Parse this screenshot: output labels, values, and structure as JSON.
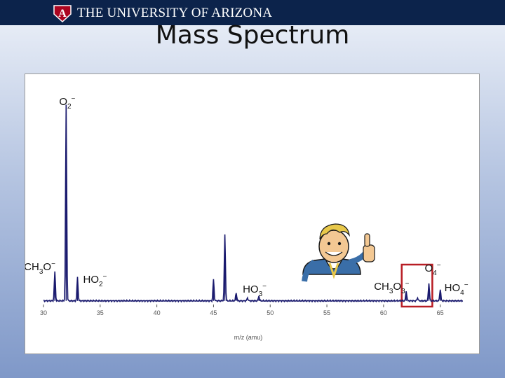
{
  "header": {
    "university": "THE UNIVERSITY OF ARIZONA",
    "logo_letter": "A",
    "bar_color": "#0c234b",
    "accent_color": "#ab0520"
  },
  "slide": {
    "title": "Mass Spectrum"
  },
  "chart_data": {
    "type": "line",
    "title": "",
    "xlabel": "m/z (amu)",
    "ylabel": "",
    "xlim": [
      30,
      67
    ],
    "ylim": [
      0,
      100
    ],
    "x_ticks": [
      30,
      35,
      40,
      45,
      50,
      55,
      60,
      65
    ],
    "grid": false,
    "line_color": "#1a1a6e",
    "baseline": 1.5,
    "peaks": [
      {
        "x": 31,
        "y": 15,
        "ion": "CH3O",
        "base": "CH",
        "sub": "3",
        "tail": "O",
        "sup": "−"
      },
      {
        "x": 32,
        "y": 100,
        "ion": "O2",
        "base": "O",
        "sub": "2",
        "tail": "",
        "sup": "−"
      },
      {
        "x": 33,
        "y": 12,
        "ion": "HO2",
        "base": "HO",
        "sub": "2",
        "tail": "",
        "sup": "−"
      },
      {
        "x": 45,
        "y": 11,
        "ion": null
      },
      {
        "x": 46,
        "y": 34,
        "ion": null
      },
      {
        "x": 47,
        "y": 4,
        "ion": null
      },
      {
        "x": 48,
        "y": 1.5,
        "ion": null
      },
      {
        "x": 49,
        "y": 2.5,
        "ion": "HO3",
        "base": "HO",
        "sub": "3",
        "tail": "",
        "sup": "−"
      },
      {
        "x": 62,
        "y": 5,
        "ion": "CH3O3",
        "base": "CH",
        "sub": "3",
        "tail": "O",
        "sub2": "3",
        "sup": "−"
      },
      {
        "x": 63,
        "y": 1.5,
        "ion": null
      },
      {
        "x": 64,
        "y": 9,
        "ion": "O4",
        "base": "O",
        "sub": "4",
        "tail": "",
        "sup": "−"
      },
      {
        "x": 65,
        "y": 6,
        "ion": "HO4",
        "base": "HO",
        "sub": "4",
        "tail": "",
        "sup": "−"
      }
    ],
    "highlight_box": {
      "x_range": [
        61.6,
        64.3
      ],
      "color": "#b81d24"
    }
  },
  "mascot": {
    "name": "vault-boy-thumbs-up"
  }
}
